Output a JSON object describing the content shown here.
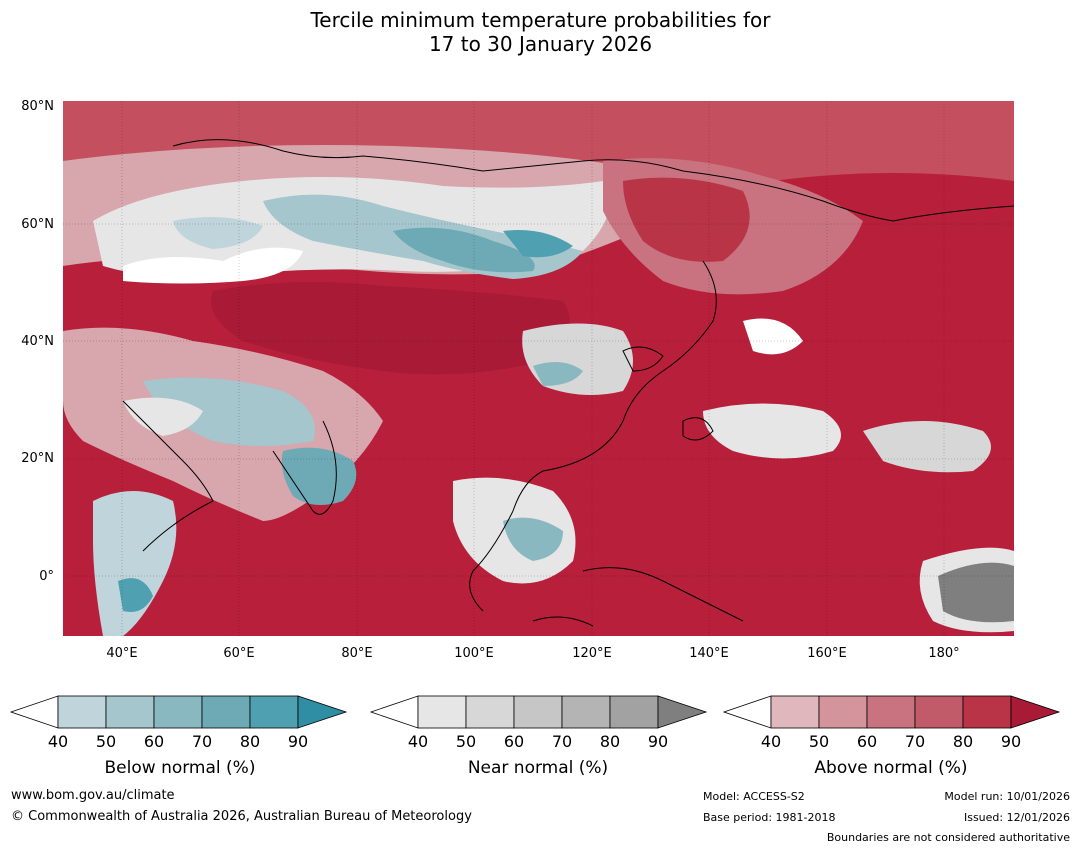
{
  "title": {
    "line1": "Tercile minimum temperature probabilities for",
    "line2": "17 to 30 January 2026"
  },
  "map": {
    "lat_labels": [
      "80°N",
      "60°N",
      "40°N",
      "20°N",
      "0°"
    ],
    "lon_labels": [
      "40°E",
      "60°E",
      "80°E",
      "100°E",
      "120°E",
      "140°E",
      "160°E",
      "180°"
    ]
  },
  "legends": [
    {
      "id": "below",
      "title": "Below normal (%)",
      "ticks": [
        "40",
        "50",
        "60",
        "70",
        "80",
        "90"
      ],
      "colors": [
        "#bfd4db",
        "#a4c6cc",
        "#8ab8c0",
        "#6eaab6",
        "#4fa0b1",
        "#2f8ea3"
      ]
    },
    {
      "id": "near",
      "title": "Near normal (%)",
      "ticks": [
        "40",
        "50",
        "60",
        "70",
        "80",
        "90"
      ],
      "colors": [
        "#e6e6e6",
        "#d7d7d7",
        "#c6c6c6",
        "#b4b4b4",
        "#a2a2a2",
        "#7f7f7f"
      ]
    },
    {
      "id": "above",
      "title": "Above normal (%)",
      "ticks": [
        "40",
        "50",
        "60",
        "70",
        "80",
        "90"
      ],
      "colors": [
        "#e1b7be",
        "#d4949c",
        "#c8737f",
        "#c25b69",
        "#b83446",
        "#a81a36"
      ]
    }
  ],
  "footer": {
    "website": "www.bom.gov.au/climate",
    "copyright": "© Commonwealth of Australia 2026, Australian Bureau of Meteorology",
    "model": "Model: ACCESS-S2",
    "base_period": "Base period: 1981-2018",
    "model_run": "Model run: 10/01/2026",
    "issued": "Issued: 12/01/2026",
    "disclaimer": "Boundaries are not considered authoritative"
  }
}
